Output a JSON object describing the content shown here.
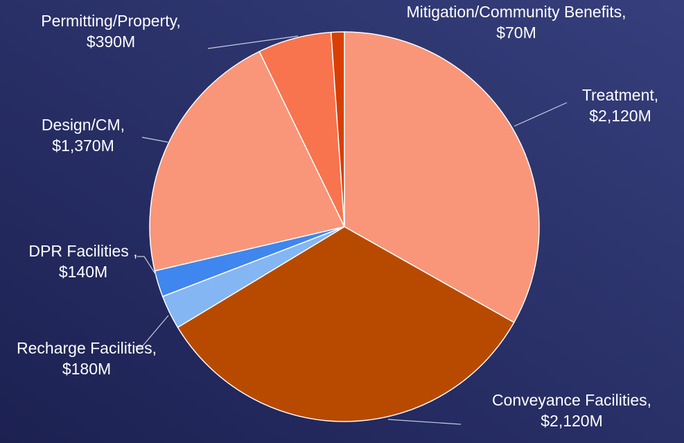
{
  "chart_data": {
    "type": "pie",
    "categories": [
      "Treatment,",
      "Conveyance Facilities,",
      "Recharge Facilities,",
      "DPR Facilities ,",
      "Design/CM,",
      "Permitting/Property,",
      "Mitigation/Community Benefits,"
    ],
    "values": [
      2120,
      2120,
      180,
      140,
      1370,
      390,
      70
    ],
    "value_labels": [
      "$2,120M",
      "$2,120M",
      "$180M",
      "$140M",
      "$1,370M",
      "$390M",
      "$70M"
    ],
    "colors": [
      "#f9967a",
      "#b84a00",
      "#84b6f4",
      "#3f86ee",
      "#f9967a",
      "#f7744e",
      "#d93f05"
    ]
  }
}
